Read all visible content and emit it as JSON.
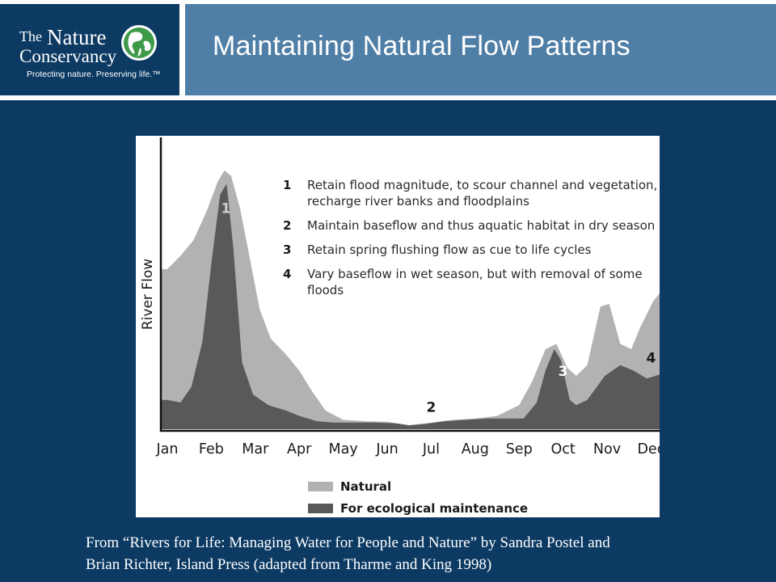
{
  "header": {
    "title": "Maintaining Natural Flow Patterns",
    "logo": {
      "the": "The",
      "nature": "Nature",
      "conservancy": "Conservancy",
      "tagline": "Protecting nature. Preserving life.™",
      "icon": "globe-leaf-icon"
    }
  },
  "chart_data": {
    "type": "area",
    "title": "",
    "xlabel": "",
    "ylabel": "River Flow",
    "categories": [
      "Jan",
      "Feb",
      "Mar",
      "Apr",
      "May",
      "Jun",
      "Jul",
      "Aug",
      "Sep",
      "Oct",
      "Nov",
      "Dec"
    ],
    "ylim": [
      0,
      100
    ],
    "y_ticks": false,
    "grid": false,
    "legend_position": "bottom-left",
    "series": [
      {
        "name": "Natural",
        "color": "#b2b2b2",
        "points": [
          [
            0,
            60
          ],
          [
            0.3,
            65
          ],
          [
            0.6,
            71
          ],
          [
            0.9,
            82
          ],
          [
            1.15,
            93
          ],
          [
            1.3,
            97
          ],
          [
            1.45,
            95
          ],
          [
            1.65,
            83
          ],
          [
            1.9,
            62
          ],
          [
            2.1,
            45
          ],
          [
            2.35,
            34
          ],
          [
            2.7,
            28
          ],
          [
            3.0,
            22
          ],
          [
            3.3,
            14
          ],
          [
            3.6,
            7
          ],
          [
            4.0,
            3.5
          ],
          [
            4.5,
            3
          ],
          [
            5.0,
            2.8
          ],
          [
            5.5,
            1.5
          ],
          [
            6.0,
            2.5
          ],
          [
            6.5,
            3.5
          ],
          [
            7.0,
            4
          ],
          [
            7.5,
            5
          ],
          [
            8.0,
            9
          ],
          [
            8.3,
            18
          ],
          [
            8.6,
            30
          ],
          [
            8.85,
            32
          ],
          [
            9.1,
            23
          ],
          [
            9.3,
            20
          ],
          [
            9.55,
            24
          ],
          [
            9.85,
            46
          ],
          [
            10.05,
            47
          ],
          [
            10.3,
            32
          ],
          [
            10.55,
            30
          ],
          [
            10.75,
            38
          ],
          [
            11.05,
            48
          ],
          [
            11.3,
            53
          ]
        ]
      },
      {
        "name": "For ecological maintenance",
        "color": "#595959",
        "points": [
          [
            0,
            11
          ],
          [
            0.3,
            10
          ],
          [
            0.55,
            16
          ],
          [
            0.8,
            33
          ],
          [
            1.0,
            62
          ],
          [
            1.2,
            88
          ],
          [
            1.35,
            92
          ],
          [
            1.5,
            68
          ],
          [
            1.7,
            25
          ],
          [
            1.95,
            13
          ],
          [
            2.3,
            9
          ],
          [
            2.7,
            7
          ],
          [
            3.0,
            5
          ],
          [
            3.4,
            3
          ],
          [
            3.8,
            2.5
          ],
          [
            4.2,
            2.5
          ],
          [
            4.7,
            2.5
          ],
          [
            5.2,
            2.2
          ],
          [
            5.5,
            1.5
          ],
          [
            5.9,
            2
          ],
          [
            6.3,
            3
          ],
          [
            6.8,
            3.5
          ],
          [
            7.3,
            4
          ],
          [
            7.7,
            4
          ],
          [
            8.1,
            4
          ],
          [
            8.4,
            10
          ],
          [
            8.6,
            22
          ],
          [
            8.8,
            30
          ],
          [
            8.95,
            26
          ],
          [
            9.15,
            11
          ],
          [
            9.3,
            9
          ],
          [
            9.55,
            11
          ],
          [
            9.95,
            20
          ],
          [
            10.3,
            24
          ],
          [
            10.6,
            22
          ],
          [
            10.9,
            19
          ],
          [
            11.1,
            20
          ],
          [
            11.3,
            21
          ]
        ]
      }
    ],
    "annotations": [
      {
        "label": "1",
        "x": 1.33,
        "y": 81
      },
      {
        "label": "2",
        "x": 6.0,
        "y": 6.5
      },
      {
        "label": "3",
        "x": 9.0,
        "y": 20
      },
      {
        "label": "4",
        "x": 11.0,
        "y": 25
      }
    ],
    "notes": [
      {
        "num": "1",
        "lines": [
          "Retain flood magnitude, to scour channel and vegetation,",
          "recharge river banks and floodplains"
        ]
      },
      {
        "num": "2",
        "lines": [
          "Maintain baseflow and thus aquatic habitat in dry season"
        ]
      },
      {
        "num": "3",
        "lines": [
          "Retain spring flushing flow as cue to life cycles"
        ]
      },
      {
        "num": "4",
        "lines": [
          "Vary baseflow in wet season, but with removal of some",
          "floods"
        ]
      }
    ]
  },
  "caption": {
    "line1": "From “Rivers for Life: Managing Water for People and Nature” by Sandra Postel and",
    "line2": "Brian Richter, Island Press (adapted from Tharme and King 1998)"
  }
}
